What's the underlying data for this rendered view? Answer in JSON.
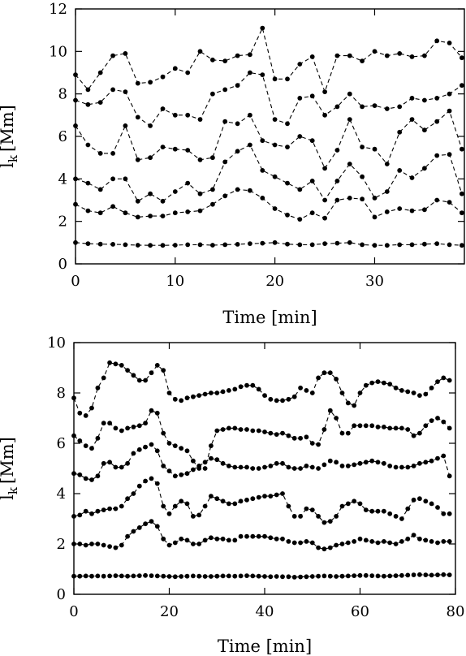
{
  "chart_data": [
    {
      "type": "line",
      "xlabel": "Time [min]",
      "ylabel_main": "l",
      "ylabel_sub": "k",
      "ylabel_unit": "[Mm]",
      "xlim": [
        0,
        39
      ],
      "ylim": [
        0,
        12
      ],
      "xticks": [
        0,
        10,
        20,
        30
      ],
      "yticks": [
        0,
        2,
        4,
        6,
        8,
        10,
        12
      ],
      "x": [
        0,
        1.25,
        2.5,
        3.75,
        5,
        6.25,
        7.5,
        8.75,
        10,
        11.25,
        12.5,
        13.75,
        15,
        16.25,
        17.5,
        18.75,
        20,
        21.25,
        22.5,
        23.75,
        25,
        26.25,
        27.5,
        28.75,
        30,
        31.25,
        32.5,
        33.75,
        35,
        36.25,
        37.5,
        38.75
      ],
      "series": [
        {
          "values": [
            1.0,
            0.95,
            0.93,
            0.92,
            0.9,
            0.88,
            0.87,
            0.87,
            0.88,
            0.9,
            0.9,
            0.88,
            0.9,
            0.92,
            0.95,
            0.97,
            1.0,
            0.93,
            0.9,
            0.9,
            0.95,
            0.97,
            1.0,
            0.9,
            0.87,
            0.87,
            0.9,
            0.9,
            0.93,
            0.95,
            0.9,
            0.87
          ]
        },
        {
          "values": [
            2.8,
            2.5,
            2.4,
            2.7,
            2.4,
            2.2,
            2.25,
            2.25,
            2.4,
            2.45,
            2.5,
            2.8,
            3.2,
            3.5,
            3.45,
            3.1,
            2.6,
            2.3,
            2.1,
            2.4,
            2.15,
            3.0,
            3.1,
            3.05,
            2.2,
            2.45,
            2.6,
            2.5,
            2.55,
            3.0,
            2.9,
            2.4
          ]
        },
        {
          "values": [
            4.0,
            3.8,
            3.5,
            4.0,
            4.0,
            2.95,
            3.3,
            2.95,
            3.4,
            3.8,
            3.3,
            3.5,
            4.8,
            5.3,
            5.6,
            4.4,
            4.1,
            3.8,
            3.5,
            3.9,
            3.0,
            3.9,
            4.7,
            4.1,
            3.1,
            3.4,
            4.4,
            4.05,
            4.5,
            5.1,
            5.15,
            3.3
          ]
        },
        {
          "values": [
            6.5,
            5.6,
            5.2,
            5.2,
            6.5,
            4.9,
            5.0,
            5.5,
            5.4,
            5.35,
            4.9,
            5.0,
            6.7,
            6.6,
            7.0,
            5.8,
            5.6,
            5.5,
            6.0,
            5.8,
            4.5,
            5.35,
            6.8,
            5.5,
            5.4,
            4.7,
            6.2,
            6.8,
            6.3,
            6.7,
            7.2,
            5.4
          ]
        },
        {
          "values": [
            7.7,
            7.5,
            7.6,
            8.2,
            8.1,
            6.9,
            6.5,
            7.3,
            7.0,
            7.0,
            6.8,
            8.0,
            8.2,
            8.4,
            9.0,
            8.9,
            6.8,
            6.6,
            7.8,
            7.9,
            7.0,
            7.4,
            8.0,
            7.4,
            7.45,
            7.3,
            7.4,
            7.8,
            7.7,
            7.8,
            8.0,
            8.4
          ]
        },
        {
          "values": [
            8.9,
            8.2,
            9.0,
            9.8,
            9.9,
            8.5,
            8.55,
            8.8,
            9.2,
            9.0,
            10.0,
            9.6,
            9.55,
            9.8,
            9.85,
            11.1,
            8.7,
            8.7,
            9.4,
            9.75,
            8.1,
            9.8,
            9.8,
            9.55,
            10.0,
            9.8,
            9.9,
            9.75,
            9.8,
            10.5,
            10.4,
            9.7
          ]
        }
      ]
    },
    {
      "type": "line",
      "xlabel": "Time [min]",
      "ylabel_main": "l",
      "ylabel_sub": "k",
      "ylabel_unit": "[Mm]",
      "xlim": [
        0,
        80
      ],
      "ylim": [
        0,
        10
      ],
      "xticks": [
        0,
        20,
        40,
        60,
        80
      ],
      "yticks": [
        0,
        2,
        4,
        6,
        8,
        10
      ],
      "x": [
        0,
        1.25,
        2.5,
        3.75,
        5,
        6.25,
        7.5,
        8.75,
        10,
        11.25,
        12.5,
        13.75,
        15,
        16.25,
        17.5,
        18.75,
        20,
        21.25,
        22.5,
        23.75,
        25,
        26.25,
        27.5,
        28.75,
        30,
        31.25,
        32.5,
        33.75,
        35,
        36.25,
        37.5,
        38.75,
        40,
        41.25,
        42.5,
        43.75,
        45,
        46.25,
        47.5,
        48.75,
        50,
        51.25,
        52.5,
        53.75,
        55,
        56.25,
        57.5,
        58.75,
        60,
        61.25,
        62.5,
        63.75,
        65,
        66.25,
        67.5,
        68.75,
        70,
        71.25,
        72.5,
        73.75,
        75,
        76.25,
        77.5,
        78.75
      ],
      "series": [
        {
          "values": [
            0.72,
            0.72,
            0.73,
            0.72,
            0.73,
            0.72,
            0.73,
            0.74,
            0.73,
            0.72,
            0.73,
            0.74,
            0.75,
            0.74,
            0.73,
            0.72,
            0.71,
            0.7,
            0.71,
            0.72,
            0.73,
            0.72,
            0.71,
            0.71,
            0.72,
            0.73,
            0.73,
            0.72,
            0.73,
            0.74,
            0.73,
            0.72,
            0.71,
            0.7,
            0.71,
            0.7,
            0.7,
            0.68,
            0.69,
            0.7,
            0.71,
            0.72,
            0.73,
            0.72,
            0.71,
            0.72,
            0.73,
            0.74,
            0.75,
            0.75,
            0.74,
            0.73,
            0.72,
            0.73,
            0.74,
            0.75,
            0.76,
            0.77,
            0.78,
            0.77,
            0.76,
            0.77,
            0.78,
            0.77
          ]
        },
        {
          "values": [
            2.0,
            2.0,
            1.95,
            2.0,
            2.0,
            1.95,
            1.9,
            1.85,
            1.95,
            2.3,
            2.5,
            2.65,
            2.8,
            2.9,
            2.7,
            2.2,
            1.95,
            2.05,
            2.2,
            2.15,
            2.0,
            2.0,
            2.15,
            2.25,
            2.2,
            2.2,
            2.15,
            2.15,
            2.3,
            2.3,
            2.3,
            2.3,
            2.3,
            2.25,
            2.2,
            2.2,
            2.1,
            2.05,
            2.05,
            2.1,
            2.05,
            1.85,
            1.8,
            1.85,
            1.95,
            2.0,
            2.05,
            2.1,
            2.2,
            2.15,
            2.1,
            2.05,
            2.1,
            2.05,
            2.0,
            2.1,
            2.2,
            2.35,
            2.2,
            2.15,
            2.1,
            2.05,
            2.1,
            2.1
          ]
        },
        {
          "values": [
            3.1,
            3.15,
            3.3,
            3.2,
            3.3,
            3.35,
            3.4,
            3.4,
            3.5,
            3.8,
            4.0,
            4.3,
            4.5,
            4.6,
            4.4,
            3.5,
            3.2,
            3.5,
            3.7,
            3.6,
            3.1,
            3.15,
            3.5,
            3.9,
            3.8,
            3.7,
            3.6,
            3.6,
            3.7,
            3.75,
            3.8,
            3.85,
            3.9,
            3.9,
            3.95,
            4.0,
            3.5,
            3.1,
            3.1,
            3.4,
            3.35,
            3.1,
            2.85,
            2.9,
            3.1,
            3.5,
            3.6,
            3.7,
            3.6,
            3.35,
            3.3,
            3.3,
            3.3,
            3.2,
            3.1,
            3.0,
            3.4,
            3.75,
            3.8,
            3.7,
            3.6,
            3.45,
            3.2,
            3.2
          ]
        },
        {
          "values": [
            4.8,
            4.75,
            4.6,
            4.55,
            4.7,
            5.2,
            5.25,
            5.05,
            5.05,
            5.2,
            5.6,
            5.75,
            5.85,
            5.95,
            5.7,
            5.1,
            4.9,
            4.7,
            4.75,
            4.8,
            4.95,
            5.1,
            5.25,
            5.4,
            5.35,
            5.2,
            5.1,
            5.05,
            5.05,
            5.05,
            5.0,
            5.0,
            5.05,
            5.1,
            5.2,
            5.2,
            5.05,
            5.0,
            5.0,
            5.1,
            5.05,
            5.0,
            5.15,
            5.3,
            5.25,
            5.1,
            5.1,
            5.15,
            5.2,
            5.25,
            5.3,
            5.25,
            5.2,
            5.1,
            5.05,
            5.05,
            5.05,
            5.1,
            5.2,
            5.25,
            5.3,
            5.4,
            5.5,
            4.7
          ]
        },
        {
          "values": [
            6.3,
            6.1,
            5.9,
            5.8,
            6.2,
            6.8,
            6.8,
            6.6,
            6.5,
            6.6,
            6.65,
            6.7,
            6.8,
            7.3,
            7.2,
            6.4,
            6.0,
            5.9,
            5.8,
            5.7,
            5.3,
            5.0,
            5.0,
            5.9,
            6.5,
            6.55,
            6.6,
            6.6,
            6.55,
            6.55,
            6.5,
            6.5,
            6.45,
            6.4,
            6.35,
            6.4,
            6.3,
            6.2,
            6.2,
            6.25,
            6.0,
            5.95,
            6.55,
            7.3,
            7.0,
            6.4,
            6.4,
            6.7,
            6.7,
            6.7,
            6.7,
            6.65,
            6.65,
            6.6,
            6.6,
            6.6,
            6.55,
            6.3,
            6.4,
            6.7,
            6.9,
            7.0,
            6.85,
            6.6
          ]
        },
        {
          "values": [
            7.8,
            7.2,
            7.1,
            7.4,
            8.2,
            8.6,
            9.2,
            9.15,
            9.1,
            8.9,
            8.7,
            8.5,
            8.5,
            8.8,
            9.1,
            8.9,
            8.0,
            7.75,
            7.7,
            7.8,
            7.85,
            7.9,
            7.95,
            8.0,
            8.0,
            8.05,
            8.1,
            8.15,
            8.25,
            8.3,
            8.3,
            8.15,
            7.9,
            7.75,
            7.7,
            7.7,
            7.75,
            7.85,
            8.2,
            8.1,
            8.0,
            8.6,
            8.8,
            8.8,
            8.55,
            8.0,
            7.6,
            7.5,
            8.0,
            8.3,
            8.4,
            8.45,
            8.4,
            8.35,
            8.2,
            8.1,
            8.05,
            8.0,
            7.9,
            7.95,
            8.2,
            8.45,
            8.6,
            8.5
          ]
        }
      ]
    }
  ]
}
